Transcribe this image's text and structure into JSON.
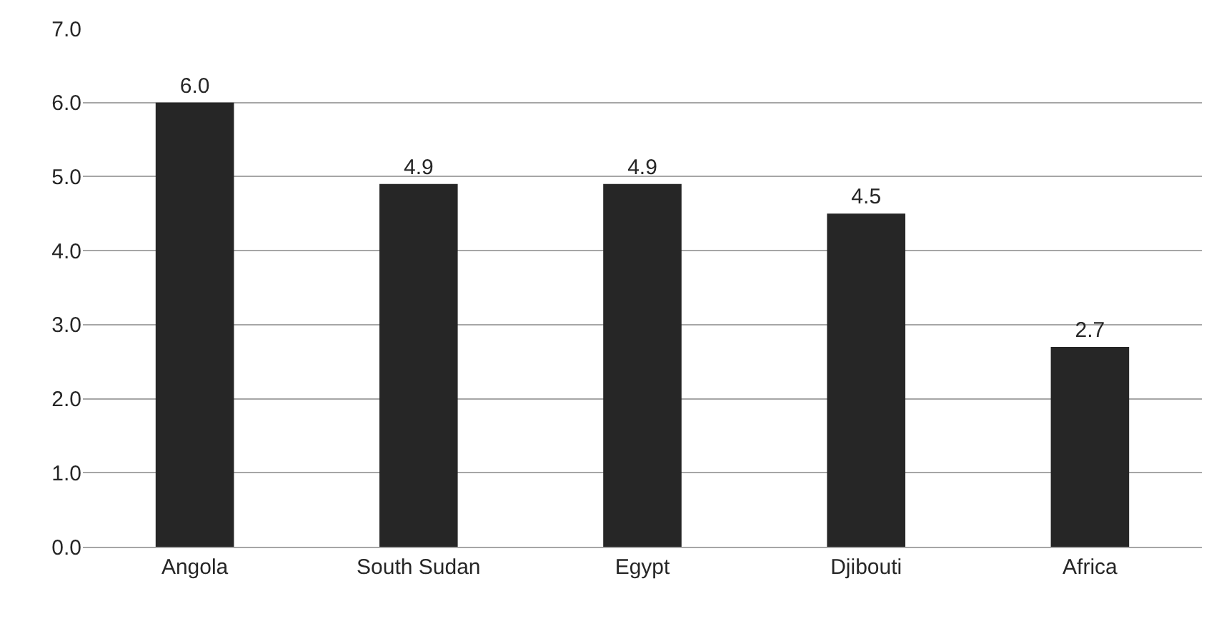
{
  "chart_data": {
    "type": "bar",
    "categories": [
      "Angola",
      "South Sudan",
      "Egypt",
      "Djibouti",
      "Africa"
    ],
    "values": [
      6.0,
      4.9,
      4.9,
      4.5,
      2.7
    ],
    "value_labels": [
      "6.0",
      "4.9",
      "4.9",
      "4.5",
      "2.7"
    ],
    "color": "#262626",
    "ylim": [
      0,
      7
    ],
    "yticks": [
      {
        "value": 0,
        "label": "0.0"
      },
      {
        "value": 1,
        "label": "1.0"
      },
      {
        "value": 2,
        "label": "2.0"
      },
      {
        "value": 3,
        "label": "3.0"
      },
      {
        "value": 4,
        "label": "4.0"
      },
      {
        "value": 5,
        "label": "5.0"
      },
      {
        "value": 6,
        "label": "6.0"
      },
      {
        "value": 7,
        "label": "7.0"
      }
    ],
    "grid": "y",
    "legend": false
  }
}
